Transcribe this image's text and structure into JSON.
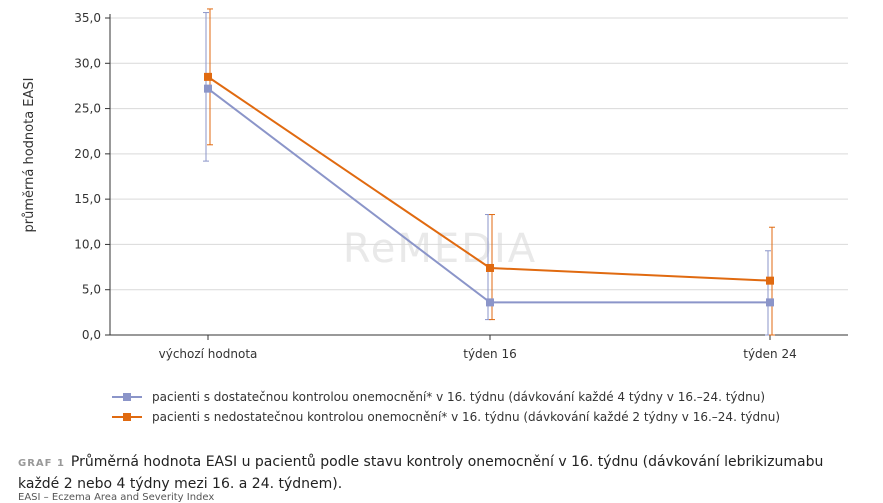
{
  "chart_data": {
    "type": "line",
    "ylabel": "průměrná hodnota EASI",
    "ylim": [
      0,
      35
    ],
    "yticks": [
      "0,0",
      "5,0",
      "10,0",
      "15,0",
      "20,0",
      "25,0",
      "30,0",
      "35,0"
    ],
    "categories": [
      "výchozí hodnota",
      "týden 16",
      "týden 24"
    ],
    "grid": true,
    "legend_position": "bottom",
    "series": [
      {
        "name": "pacienti s dostatečnou kontrolou onemocnění* v 16. týdnu (dávkování každé 4 týdny v 16.–24. týdnu)",
        "color": "#8b95c9",
        "values": [
          27.2,
          3.6,
          3.6
        ],
        "error_low": [
          19.2,
          1.7,
          0.0
        ],
        "error_high": [
          35.6,
          13.3,
          9.3
        ]
      },
      {
        "name": "pacienti s nedostatečnou kontrolou onemocnění* v 16. týdnu (dávkování každé 2 týdny v 16.–24. týdnu)",
        "color": "#e06a10",
        "values": [
          28.5,
          7.4,
          6.0
        ],
        "error_low": [
          21.0,
          1.7,
          0.0
        ],
        "error_high": [
          36.0,
          13.3,
          11.9
        ]
      }
    ]
  },
  "watermark": "ReMEDIA",
  "caption": {
    "label": "GRAF 1",
    "text": "Průměrná hodnota EASI u pacientů podle stavu kontroly onemocnění v 16. týdnu (dávkování lebrikizumabu každé 2 nebo 4 týdny mezi 16. a 24. týdnem)."
  },
  "footnote": "EASI – Eczema Area and Severity Index"
}
